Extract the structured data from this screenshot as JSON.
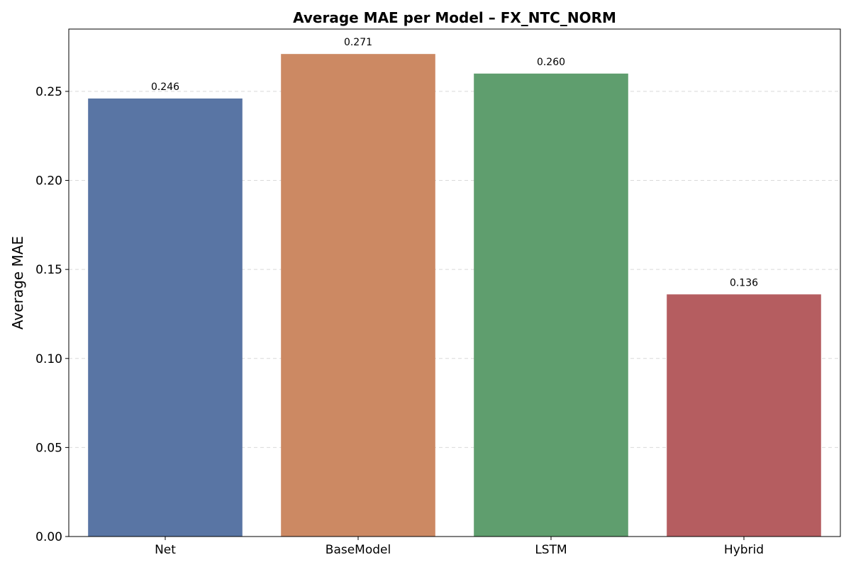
{
  "chart_data": {
    "type": "bar",
    "title": "Average MAE per Model – FX_NTC_NORM",
    "xlabel": "",
    "ylabel": "Average MAE",
    "categories": [
      "Net",
      "BaseModel",
      "LSTM",
      "Hybrid"
    ],
    "values": [
      0.246,
      0.271,
      0.26,
      0.136
    ],
    "value_labels": [
      "0.246",
      "0.271",
      "0.260",
      "0.136"
    ],
    "colors": [
      "#5975a4",
      "#cc8963",
      "#5f9e6e",
      "#b55d60"
    ],
    "ylim": [
      0,
      0.285
    ],
    "yticks": [
      0,
      0.05,
      0.1,
      0.15,
      0.2,
      0.25
    ],
    "ytick_labels": [
      "0.00",
      "0.05",
      "0.10",
      "0.15",
      "0.20",
      "0.25"
    ],
    "grid": "y-dashed",
    "legend": "none"
  }
}
